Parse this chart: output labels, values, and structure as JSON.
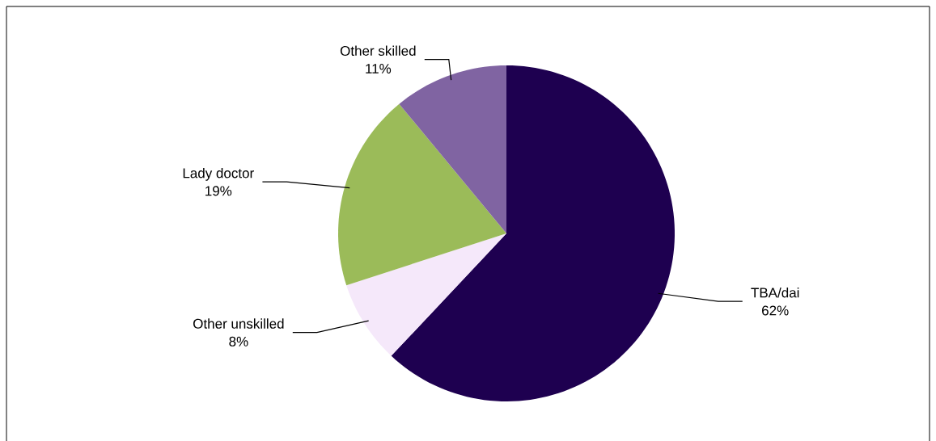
{
  "chart_data": {
    "type": "pie",
    "categories": [
      "TBA/dai",
      "Other unskilled",
      "Lady doctor",
      "Other skilled"
    ],
    "values": [
      62,
      8,
      19,
      11
    ],
    "value_labels": [
      "62%",
      "8%",
      "19%",
      "11%"
    ],
    "colors": [
      "#1e0050",
      "#f5e8fa",
      "#9bbb59",
      "#8064a2"
    ]
  }
}
